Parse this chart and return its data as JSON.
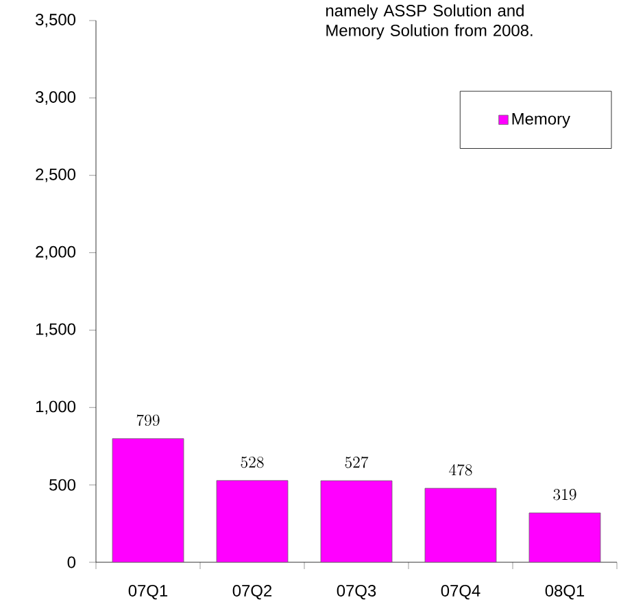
{
  "chart_data": {
    "type": "bar",
    "categories": [
      "07Q1",
      "07Q2",
      "07Q3",
      "07Q4",
      "08Q1"
    ],
    "series": [
      {
        "name": "Memory",
        "color": "#ff00ff",
        "values": [
          799,
          528,
          527,
          478,
          319
        ]
      }
    ],
    "ylim": [
      0,
      3500
    ],
    "yticks": [
      0,
      500,
      {
        "value": 1000,
        "label": "1,000"
      },
      {
        "value": 1500,
        "label": "1,500"
      },
      {
        "value": 2000,
        "label": "2,000"
      },
      {
        "value": 2500,
        "label": "2,500"
      },
      {
        "value": 3000,
        "label": "3,000"
      },
      {
        "value": 3500,
        "label": "3,500"
      }
    ],
    "data_labels": true,
    "legend": "top right",
    "grid": false,
    "annotations": [
      "namely ASSP Solution and Memory Solution from 2008."
    ]
  }
}
